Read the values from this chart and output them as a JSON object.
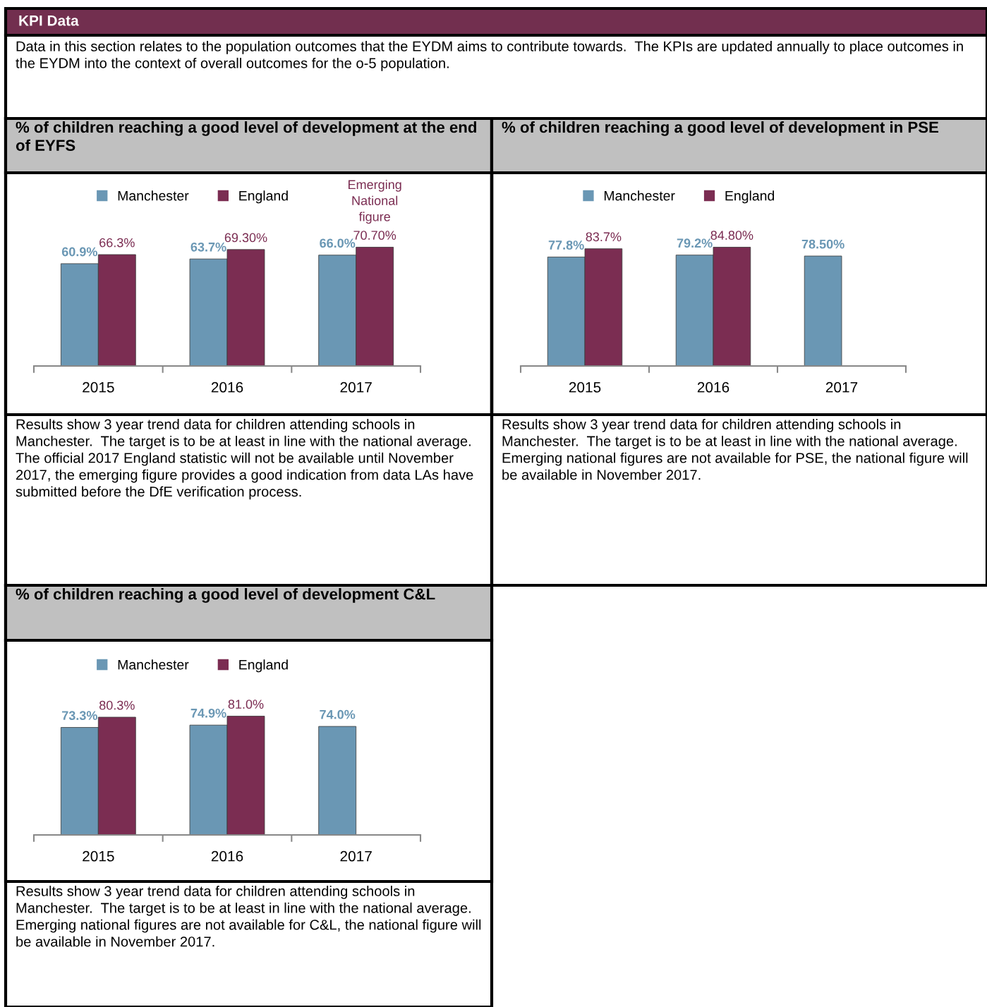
{
  "chart_data": [
    {
      "type": "other",
      "title": "KPI Data",
      "annotations": [
        "Data in this section relates to the population outcomes that the EYDM aims to contribute towards.  The KPIs are updated annually to place outcomes in the EYDM into the context of overall outcomes for the o-5 population."
      ]
    },
    {
      "type": "bar",
      "title": "% of children reaching a good level of development at the end of EYFS",
      "categories": [
        "2015",
        "2016",
        "2017"
      ],
      "legend": "top",
      "series": [
        {
          "name": "Manchester",
          "color": "#6a97b4",
          "values": [
            60.9,
            63.7,
            66.0
          ],
          "value_labels": [
            "60.9%",
            "63.7%",
            "66.0%"
          ]
        },
        {
          "name": "England",
          "color": "#7b2d52",
          "values": [
            66.3,
            69.3,
            70.7
          ],
          "value_labels": [
            "66.3%",
            "69.30%",
            "70.70%"
          ]
        }
      ],
      "annotations": [
        {
          "text": "Emerging National figure",
          "x": "2017",
          "y": 70.7
        },
        "Results show 3 year trend data for children attending schools in Manchester.  The target is to be at least in line with the national average.\nThe official 2017 England statistic will not be available until November 2017, the emerging figure provides a good indication from data LAs have submitted before the DfE verification process."
      ]
    },
    {
      "type": "bar",
      "title": "% of children reaching a good level of development in PSE",
      "categories": [
        "2015",
        "2016",
        "2017"
      ],
      "legend": "top",
      "series": [
        {
          "name": "Manchester",
          "color": "#6a97b4",
          "values": [
            77.8,
            79.2,
            78.5
          ],
          "value_labels": [
            "77.8%",
            "79.2%",
            "78.50%"
          ]
        },
        {
          "name": "England",
          "color": "#7b2d52",
          "values": [
            83.7,
            84.8,
            null
          ],
          "value_labels": [
            "83.7%",
            "84.80%",
            null
          ]
        }
      ],
      "annotations": [
        "Results show 3 year trend data for children attending schools in Manchester.  The target is to be at least in line with the national average.\nEmerging national figures are not available for PSE, the national figure will be available in November 2017."
      ]
    },
    {
      "type": "bar",
      "title": "% of children reaching a good level of development C&L",
      "categories": [
        "2015",
        "2016",
        "2017"
      ],
      "legend": "top",
      "series": [
        {
          "name": "Manchester",
          "color": "#6a97b4",
          "values": [
            73.3,
            74.9,
            74.0
          ],
          "value_labels": [
            "73.3%",
            "74.9%",
            "74.0%"
          ]
        },
        {
          "name": "England",
          "color": "#7b2d52",
          "values": [
            80.3,
            81.0,
            null
          ],
          "value_labels": [
            "80.3%",
            "81.0%",
            null
          ]
        }
      ],
      "annotations": [
        "Results show 3 year trend data for children attending schools in Manchester.  The target is to be at least in line with the national average.\nEmerging national figures are not available for C&L, the national figure will be available in November 2017."
      ]
    }
  ]
}
